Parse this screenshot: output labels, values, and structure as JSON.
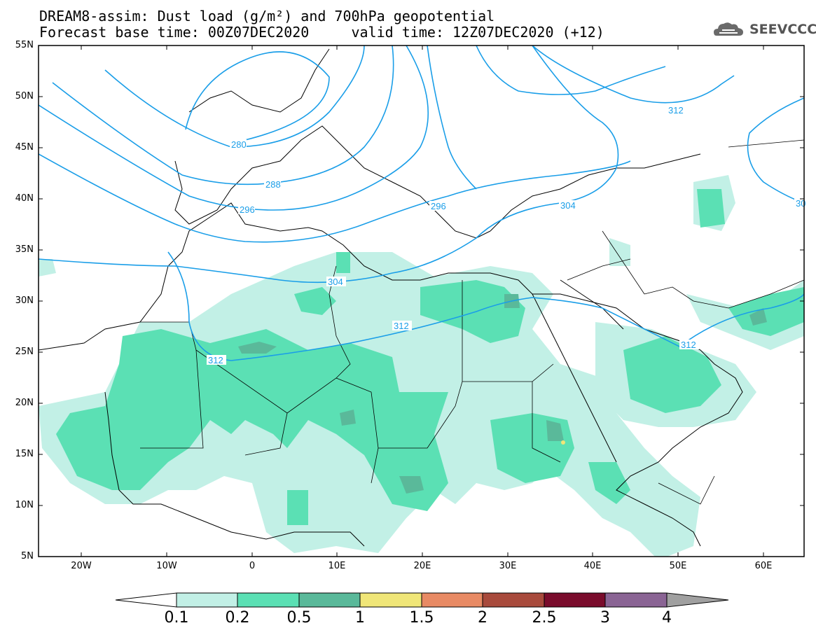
{
  "title": {
    "line1": "DREAM8-assim: Dust load (g/m²) and 700hPa geopotential",
    "line2": "Forecast base time: 00Z07DEC2020     valid time: 12Z07DEC2020 (+12)"
  },
  "logo": {
    "text": "SEEVCCC",
    "icon": "cloud-logo-icon"
  },
  "axes": {
    "lat_labels": [
      "55N",
      "50N",
      "45N",
      "40N",
      "35N",
      "30N",
      "25N",
      "20N",
      "15N",
      "10N",
      "5N"
    ],
    "lon_labels": [
      "20W",
      "10W",
      "0",
      "10E",
      "20E",
      "30E",
      "40E",
      "50E",
      "60E"
    ]
  },
  "contours": {
    "variable": "700hPa geopotential",
    "labels": [
      "280",
      "288",
      "296",
      "296",
      "304",
      "304",
      "312",
      "312",
      "312",
      "312",
      "30"
    ]
  },
  "colorbar": {
    "levels": [
      "0.1",
      "0.2",
      "0.5",
      "1",
      "1.5",
      "2",
      "2.5",
      "3",
      "4"
    ],
    "colors": [
      "#c2f0e6",
      "#5be0b4",
      "#5ab99a",
      "#f0e678",
      "#e88a64",
      "#a84a3c",
      "#7a0c2c",
      "#8a6494",
      "#a0a0a0"
    ]
  }
}
